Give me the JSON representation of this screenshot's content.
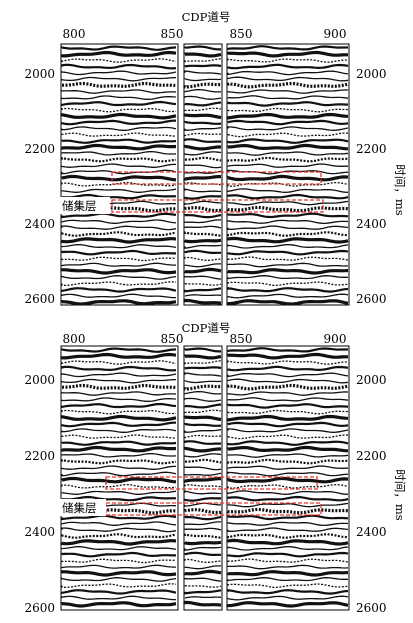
{
  "panels": [
    {
      "title": "CDP道号",
      "top_ticks": [
        "800",
        "850",
        "850",
        "900"
      ],
      "left_ticks": [
        "2000",
        "2200",
        "2400",
        "2600"
      ],
      "right_ticks": [
        "2000",
        "2200",
        "2400",
        "2600"
      ],
      "reservoir_label": "储集层"
    },
    {
      "title": "CDP道号",
      "top_ticks": [
        "800",
        "850",
        "850",
        "900"
      ],
      "left_ticks": [
        "2000",
        "2200",
        "2400",
        "2600"
      ],
      "right_ticks": [
        "2000",
        "2200",
        "2400",
        "2600"
      ],
      "reservoir_label": "储集层"
    }
  ],
  "y_axis_label": "时间，ms",
  "colors": {
    "highlight": "#e53935",
    "ink": "#111111"
  }
}
